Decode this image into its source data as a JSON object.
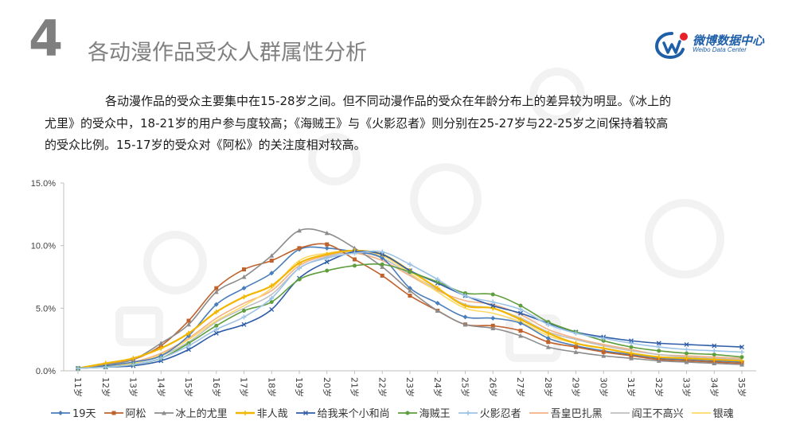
{
  "header": {
    "section_number": "4",
    "title": "各动漫作品受众人群属性分析",
    "logo": {
      "name": "微博数据中心",
      "subtitle": "Weibo Data Center"
    }
  },
  "paragraph": {
    "line1": "各动漫作品的受众主要集中在15-28岁之间。但不同动漫作品的受众在年龄分布上的差异较为明显。《冰上的",
    "line2": "尤里》的受众中，18-21岁的用户参与度较高；《海贼王》与《火影忍者》则分别在25-27岁与22-25岁之间保持着较高",
    "line3": "的受众比例。15-17岁的受众对《阿松》的关注度相对较高。"
  },
  "chart_data": {
    "type": "line",
    "title": "",
    "xlabel": "",
    "ylabel": "",
    "ylim": [
      0,
      15
    ],
    "yticks": [
      "0.0%",
      "5.0%",
      "10.0%",
      "15.0%"
    ],
    "legend_position": "bottom",
    "grid": false,
    "categories": [
      "11岁",
      "12岁",
      "13岁",
      "14岁",
      "15岁",
      "16岁",
      "17岁",
      "18岁",
      "19岁",
      "20岁",
      "21岁",
      "22岁",
      "23岁",
      "24岁",
      "25岁",
      "26岁",
      "27岁",
      "28岁",
      "29岁",
      "30岁",
      "31岁",
      "32岁",
      "33岁",
      "34岁",
      "35岁"
    ],
    "series": [
      {
        "name": "19天",
        "color": "#4a7ebb",
        "marker": "diamond",
        "values": [
          0.2,
          0.4,
          0.7,
          1.2,
          2.8,
          5.3,
          6.6,
          7.8,
          9.7,
          9.8,
          9.5,
          9.0,
          6.6,
          5.4,
          4.3,
          4.2,
          3.8,
          2.6,
          2.0,
          1.6,
          1.3,
          1.0,
          0.9,
          0.8,
          0.7
        ]
      },
      {
        "name": "阿松",
        "color": "#c0622b",
        "marker": "square",
        "values": [
          0.2,
          0.5,
          0.9,
          2.0,
          4.0,
          6.6,
          8.1,
          8.8,
          9.8,
          10.1,
          8.9,
          7.6,
          6.0,
          4.8,
          3.7,
          3.6,
          3.2,
          2.3,
          1.9,
          1.5,
          1.2,
          0.9,
          0.8,
          0.7,
          0.6
        ]
      },
      {
        "name": "冰上的尤里",
        "color": "#8c8c8c",
        "marker": "triangle",
        "values": [
          0.2,
          0.5,
          0.9,
          2.2,
          3.7,
          6.3,
          7.5,
          9.2,
          11.2,
          11.0,
          9.8,
          8.3,
          6.4,
          4.8,
          3.7,
          3.4,
          2.8,
          1.9,
          1.5,
          1.2,
          1.0,
          0.8,
          0.7,
          0.6,
          0.5
        ]
      },
      {
        "name": "非人哉",
        "color": "#f2b600",
        "marker": "plus",
        "values": [
          0.2,
          0.6,
          1.0,
          1.8,
          3.0,
          4.7,
          5.9,
          6.8,
          8.6,
          9.3,
          9.6,
          9.3,
          8.0,
          6.6,
          5.2,
          5.0,
          4.1,
          3.0,
          2.2,
          1.8,
          1.4,
          1.1,
          1.0,
          0.9,
          0.8
        ]
      },
      {
        "name": "给我来个小和尚",
        "color": "#2e5ca8",
        "marker": "x",
        "values": [
          0.2,
          0.3,
          0.4,
          0.8,
          1.7,
          3.0,
          3.7,
          4.9,
          7.4,
          8.7,
          9.5,
          9.3,
          8.0,
          7.0,
          6.0,
          5.2,
          4.6,
          3.8,
          3.1,
          2.7,
          2.4,
          2.2,
          2.1,
          2.0,
          1.9
        ]
      },
      {
        "name": "海贼王",
        "color": "#5e9e3c",
        "marker": "circle",
        "values": [
          0.2,
          0.3,
          0.5,
          1.0,
          2.2,
          3.6,
          4.8,
          5.5,
          7.3,
          8.0,
          8.4,
          8.5,
          7.9,
          7.1,
          6.2,
          6.1,
          5.2,
          3.9,
          3.1,
          2.4,
          1.9,
          1.6,
          1.4,
          1.3,
          1.1
        ]
      },
      {
        "name": "火影忍者",
        "color": "#9dc3e6",
        "marker": "plus",
        "values": [
          0.2,
          0.3,
          0.5,
          1.0,
          2.0,
          3.3,
          4.3,
          5.8,
          8.2,
          9.0,
          9.4,
          9.5,
          8.5,
          7.3,
          6.0,
          5.5,
          4.9,
          3.7,
          3.0,
          2.6,
          2.2,
          1.9,
          1.7,
          1.6,
          1.5
        ]
      },
      {
        "name": "吾皇巴扎黑",
        "color": "#f4b183",
        "marker": "none",
        "values": [
          0.2,
          0.4,
          0.7,
          1.4,
          2.6,
          4.2,
          5.4,
          6.4,
          8.4,
          9.2,
          9.4,
          8.8,
          7.6,
          6.4,
          5.6,
          5.3,
          4.5,
          3.3,
          2.6,
          2.1,
          1.7,
          1.3,
          1.2,
          1.1,
          1.0
        ]
      },
      {
        "name": "阎王不高兴",
        "color": "#bfbfbf",
        "marker": "none",
        "values": [
          0.2,
          0.4,
          0.6,
          1.2,
          2.3,
          3.9,
          5.0,
          6.1,
          8.2,
          9.1,
          9.5,
          9.0,
          7.7,
          6.5,
          5.3,
          5.0,
          4.2,
          3.1,
          2.5,
          2.0,
          1.6,
          1.3,
          1.1,
          1.0,
          0.9
        ]
      },
      {
        "name": "银魂",
        "color": "#ffd966",
        "marker": "none",
        "values": [
          0.2,
          0.4,
          0.6,
          1.3,
          2.5,
          4.0,
          5.2,
          6.6,
          8.8,
          9.4,
          9.6,
          9.2,
          7.8,
          6.3,
          5.0,
          4.6,
          3.9,
          2.8,
          2.2,
          1.8,
          1.4,
          1.1,
          1.0,
          0.9,
          0.8
        ]
      }
    ]
  }
}
